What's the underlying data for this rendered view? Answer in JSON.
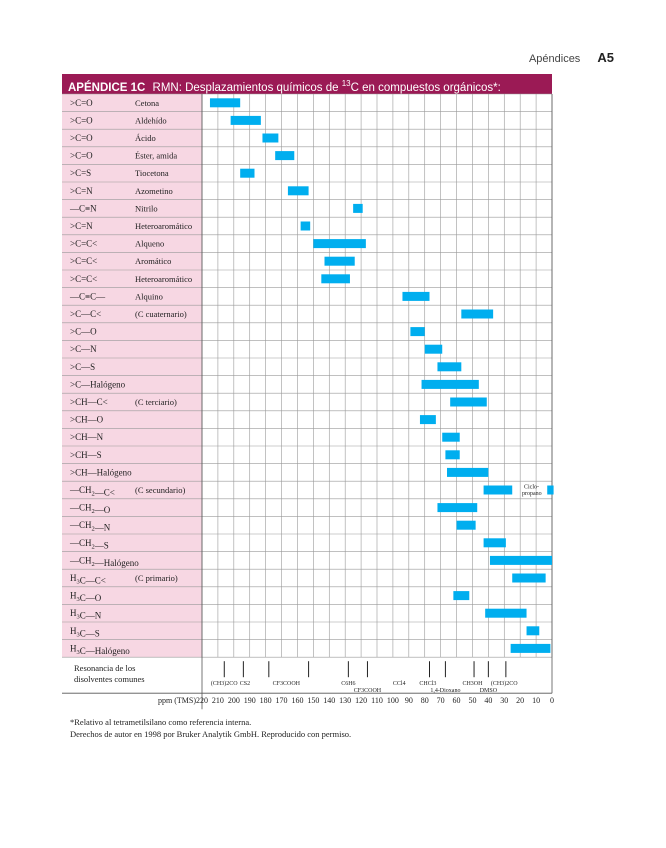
{
  "header": {
    "section": "Apéndices",
    "page": "A5"
  },
  "title": {
    "label": "APÉNDICE 1C",
    "text_before": "RMN: Desplazamientos químicos de ",
    "isotope": "13",
    "text_after": "C en compuestos orgánicos*:"
  },
  "colors": {
    "title_bg": "#9b1a55",
    "label_bg": "#f7d7e3",
    "bar": "#00aeef",
    "grid": "#9a9a9a"
  },
  "chart_data": {
    "type": "range-bar",
    "xlabel": "ppm (TMS)",
    "xlim": [
      220,
      0
    ],
    "ticks": [
      220,
      210,
      200,
      190,
      180,
      170,
      160,
      150,
      140,
      130,
      120,
      110,
      100,
      90,
      80,
      70,
      60,
      50,
      40,
      30,
      20,
      10,
      0
    ],
    "rows": [
      {
        "group": ">C=O",
        "name": "Cetona",
        "range": [
          215,
          196
        ]
      },
      {
        "group": ">C=O",
        "name": "Aldehído",
        "range": [
          202,
          183
        ]
      },
      {
        "group": ">C=O",
        "name": "Ácido",
        "range": [
          182,
          172
        ]
      },
      {
        "group": ">C=O",
        "name": "Éster, amida",
        "range": [
          174,
          162
        ]
      },
      {
        "group": ">C=S",
        "name": "Tiocetona",
        "range": [
          196,
          187
        ]
      },
      {
        "group": ">C=N",
        "name": "Azometino",
        "range": [
          166,
          153
        ]
      },
      {
        "group": "-C≡N",
        "name": "Nitrilo",
        "range": [
          125,
          119
        ]
      },
      {
        "group": ">C=N",
        "name": "Heteroaromático",
        "range": [
          158,
          152
        ]
      },
      {
        "group": ">C=C<",
        "name": "Alqueno",
        "range": [
          150,
          117
        ]
      },
      {
        "group": ">C=C<",
        "name": "Aromático",
        "range": [
          143,
          124
        ]
      },
      {
        "group": ">C=C<",
        "name": "Heteroaromático",
        "range": [
          145,
          127
        ]
      },
      {
        "group": "-C≡C-",
        "name": "Alquino",
        "range": [
          94,
          77
        ]
      },
      {
        "group": ">C-C<",
        "name": "(C cuaternario)",
        "range": [
          57,
          37
        ]
      },
      {
        "group": ">C-O",
        "name": "",
        "range": [
          89,
          80
        ]
      },
      {
        "group": ">C-N",
        "name": "",
        "range": [
          80,
          69
        ]
      },
      {
        "group": ">C-S",
        "name": "",
        "range": [
          72,
          57
        ]
      },
      {
        "group": ">C-Halógeno",
        "name": "",
        "range": [
          82,
          46
        ]
      },
      {
        "group": ">CH-C<",
        "name": "(C terciario)",
        "range": [
          64,
          41
        ]
      },
      {
        "group": ">CH-O",
        "name": "",
        "range": [
          83,
          73
        ]
      },
      {
        "group": ">CH-N",
        "name": "",
        "range": [
          69,
          58
        ]
      },
      {
        "group": ">CH-S",
        "name": "",
        "range": [
          67,
          58
        ]
      },
      {
        "group": ">CH-Halógeno",
        "name": "",
        "range": [
          66,
          40
        ]
      },
      {
        "group": "-CH2-C<",
        "name": "(C secundario)",
        "range": [
          43,
          25
        ]
      },
      {
        "group": "-CH2-O",
        "name": "",
        "range": [
          72,
          47
        ]
      },
      {
        "group": "-CH2-N",
        "name": "",
        "range": [
          60,
          48
        ]
      },
      {
        "group": "-CH2-S",
        "name": "",
        "range": [
          43,
          29
        ]
      },
      {
        "group": "-CH2-Halógeno",
        "name": "",
        "range": [
          39,
          0
        ]
      },
      {
        "group": "H3C-C<",
        "name": "(C primario)",
        "range": [
          25,
          4
        ]
      },
      {
        "group": "H3C-O",
        "name": "",
        "range": [
          62,
          52
        ]
      },
      {
        "group": "H3C-N",
        "name": "",
        "range": [
          42,
          16
        ]
      },
      {
        "group": "H3C-S",
        "name": "",
        "range": [
          16,
          8
        ]
      },
      {
        "group": "H3C-Halógeno",
        "name": "",
        "range": [
          26,
          1
        ]
      }
    ],
    "extra": {
      "label_line1": "Ciclo-",
      "label_line2": "propano",
      "row": 22,
      "range": [
        3,
        -1
      ]
    },
    "solvent_row": {
      "label_line1": "Resonancia de los",
      "label_line2": "disolventes comunes",
      "lines": [
        206,
        194,
        178,
        153,
        128,
        116,
        77,
        67,
        49,
        40,
        29
      ],
      "labels": [
        {
          "text": "(CH3)2CO",
          "ppm": 206,
          "level": 0
        },
        {
          "text": "CS2",
          "ppm": 193,
          "level": 0
        },
        {
          "text": "CF3COOH",
          "ppm": 167,
          "level": 0
        },
        {
          "text": "C6H6",
          "ppm": 128,
          "level": 0
        },
        {
          "text": "CF3COOH",
          "ppm": 116,
          "level": 1
        },
        {
          "text": "CCl4",
          "ppm": 96,
          "level": 0
        },
        {
          "text": "CHCl3",
          "ppm": 78,
          "level": 0
        },
        {
          "text": "1,4-Dioxano",
          "ppm": 67,
          "level": 1
        },
        {
          "text": "CH3OH",
          "ppm": 50,
          "level": 0
        },
        {
          "text": "DMSO",
          "ppm": 40,
          "level": 1
        },
        {
          "text": "(CH3)2CO",
          "ppm": 30,
          "level": 0
        }
      ]
    }
  },
  "footnotes": {
    "line1": "*Relativo al tetrametilsilano como referencia interna.",
    "line2": "Derechos de autor en 1998 por Bruker Analytik GmbH. Reproducido con permiso."
  }
}
